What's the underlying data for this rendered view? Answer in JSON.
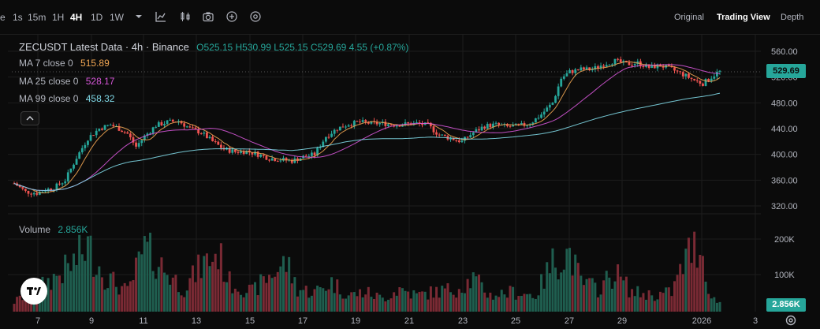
{
  "toolbar": {
    "timeframes": [
      {
        "label": "e"
      },
      {
        "label": "1s"
      },
      {
        "label": "15m"
      },
      {
        "label": "1H"
      },
      {
        "label": "4H",
        "active": true
      },
      {
        "label": "1D"
      },
      {
        "label": "1W"
      }
    ],
    "view_options": {
      "original": "Original",
      "trading_view": "Trading View",
      "depth": "Depth"
    }
  },
  "legend": {
    "title": "ZECUSDT Latest Data · 4h · Binance",
    "ohlc": "O525.15 H530.99 L525.15 C529.69 4.55 (+0.87%)",
    "ma7_label": "MA 7 close 0",
    "ma7_value": "515.89",
    "ma7_color": "#f0a552",
    "ma25_label": "MA 25 close 0",
    "ma25_value": "528.17",
    "ma25_color": "#d455d6",
    "ma99_label": "MA 99 close 0",
    "ma99_value": "458.32",
    "ma99_color": "#7fd8e6",
    "volume_label": "Volume",
    "volume_value": "2.856K"
  },
  "price_tag": "529.69",
  "volume_tag": "2.856K",
  "colors": {
    "up": "#26a69a",
    "down": "#ef5350",
    "up_vol": "#1f5e4f",
    "down_vol": "#7a2a34",
    "grid": "#1c1c1c"
  },
  "chart_data": {
    "type": "candlestick",
    "y_ticks": [
      "560.00",
      "520.00",
      "480.00",
      "440.00",
      "400.00",
      "360.00",
      "320.00"
    ],
    "ylim": [
      300,
      580
    ],
    "volume_ticks": [
      "200K",
      "100K"
    ],
    "x_ticks": [
      "7",
      "9",
      "11",
      "13",
      "15",
      "17",
      "19",
      "21",
      "23",
      "25",
      "27",
      "29",
      "2026",
      "3"
    ],
    "last_close": 529.69,
    "close_keypoints": [
      [
        0,
        355
      ],
      [
        4,
        342
      ],
      [
        8,
        340
      ],
      [
        11,
        345
      ],
      [
        14,
        348
      ],
      [
        18,
        360
      ],
      [
        22,
        395
      ],
      [
        26,
        425
      ],
      [
        30,
        440
      ],
      [
        34,
        446
      ],
      [
        37,
        440
      ],
      [
        40,
        432
      ],
      [
        43,
        412
      ],
      [
        46,
        428
      ],
      [
        50,
        445
      ],
      [
        54,
        450
      ],
      [
        58,
        452
      ],
      [
        62,
        440
      ],
      [
        66,
        434
      ],
      [
        70,
        420
      ],
      [
        74,
        408
      ],
      [
        78,
        404
      ],
      [
        82,
        405
      ],
      [
        86,
        400
      ],
      [
        90,
        394
      ],
      [
        94,
        392
      ],
      [
        98,
        390
      ],
      [
        102,
        396
      ],
      [
        106,
        400
      ],
      [
        110,
        428
      ],
      [
        114,
        440
      ],
      [
        118,
        447
      ],
      [
        122,
        450
      ],
      [
        126,
        448
      ],
      [
        130,
        448
      ],
      [
        134,
        446
      ],
      [
        138,
        447
      ],
      [
        142,
        448
      ],
      [
        146,
        445
      ],
      [
        150,
        430
      ],
      [
        154,
        425
      ],
      [
        158,
        420
      ],
      [
        162,
        434
      ],
      [
        166,
        444
      ],
      [
        170,
        446
      ],
      [
        174,
        443
      ],
      [
        178,
        444
      ],
      [
        182,
        448
      ],
      [
        186,
        462
      ],
      [
        190,
        480
      ],
      [
        193,
        518
      ],
      [
        196,
        528
      ],
      [
        200,
        532
      ],
      [
        204,
        532
      ],
      [
        208,
        540
      ],
      [
        212,
        545
      ],
      [
        216,
        540
      ],
      [
        220,
        542
      ],
      [
        224,
        535
      ],
      [
        228,
        538
      ],
      [
        232,
        532
      ],
      [
        236,
        524
      ],
      [
        240,
        515
      ],
      [
        243,
        510
      ],
      [
        246,
        520
      ],
      [
        249,
        530
      ]
    ],
    "volume_keypoints": [
      [
        0,
        30
      ],
      [
        10,
        80
      ],
      [
        20,
        140
      ],
      [
        26,
        200
      ],
      [
        32,
        110
      ],
      [
        40,
        60
      ],
      [
        46,
        190
      ],
      [
        50,
        160
      ],
      [
        54,
        120
      ],
      [
        60,
        70
      ],
      [
        66,
        140
      ],
      [
        72,
        180
      ],
      [
        76,
        90
      ],
      [
        84,
        60
      ],
      [
        90,
        110
      ],
      [
        96,
        150
      ],
      [
        100,
        70
      ],
      [
        106,
        60
      ],
      [
        112,
        90
      ],
      [
        118,
        50
      ],
      [
        124,
        60
      ],
      [
        130,
        40
      ],
      [
        136,
        70
      ],
      [
        142,
        50
      ],
      [
        148,
        60
      ],
      [
        156,
        70
      ],
      [
        162,
        100
      ],
      [
        168,
        50
      ],
      [
        176,
        60
      ],
      [
        184,
        50
      ],
      [
        190,
        150
      ],
      [
        196,
        180
      ],
      [
        200,
        90
      ],
      [
        206,
        70
      ],
      [
        212,
        120
      ],
      [
        218,
        60
      ],
      [
        226,
        50
      ],
      [
        232,
        60
      ],
      [
        238,
        180
      ],
      [
        242,
        210
      ],
      [
        246,
        40
      ],
      [
        249,
        30
      ]
    ]
  }
}
